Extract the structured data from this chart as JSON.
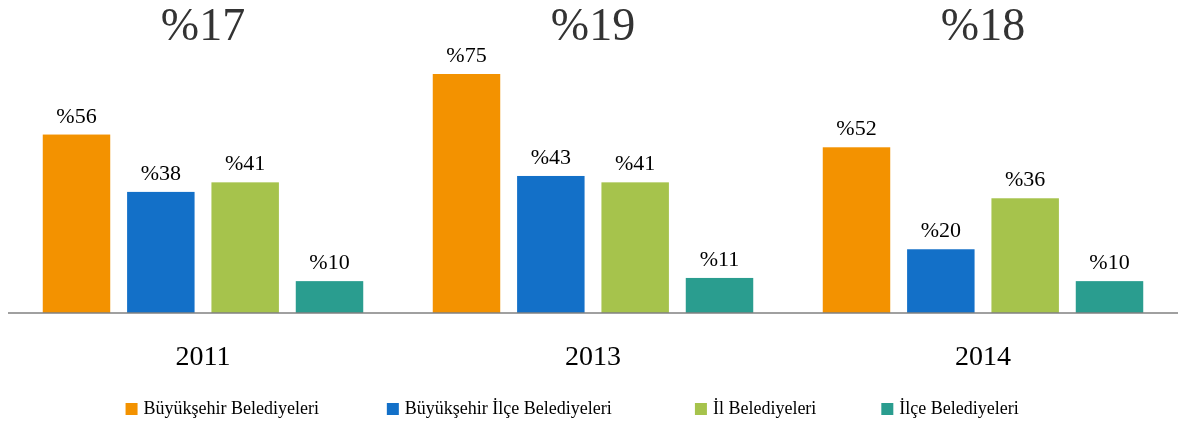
{
  "chart_data": {
    "type": "bar",
    "categories": [
      "2011",
      "2013",
      "2014"
    ],
    "series": [
      {
        "name": "Büyükşehir Belediyeleri",
        "color": "#f39200",
        "values": [
          56,
          75,
          52
        ],
        "value_labels": [
          "%56",
          "%75",
          "%52"
        ]
      },
      {
        "name": "Büyükşehir İlçe Belediyeleri",
        "color": "#1370c8",
        "values": [
          38,
          43,
          20
        ],
        "value_labels": [
          "%38",
          "%43",
          "%20"
        ]
      },
      {
        "name": "İl Belediyeleri",
        "color": "#a6c34c",
        "values": [
          41,
          41,
          36
        ],
        "value_labels": [
          "%41",
          "%41",
          "%36"
        ]
      },
      {
        "name": "İlçe Belediyeleri",
        "color": "#2a9d8f",
        "values": [
          10,
          11,
          10
        ],
        "value_labels": [
          "%10",
          "%11",
          "%10"
        ]
      }
    ],
    "annotations": [
      "%17",
      "%19",
      "%18"
    ],
    "legend": "bottom"
  }
}
